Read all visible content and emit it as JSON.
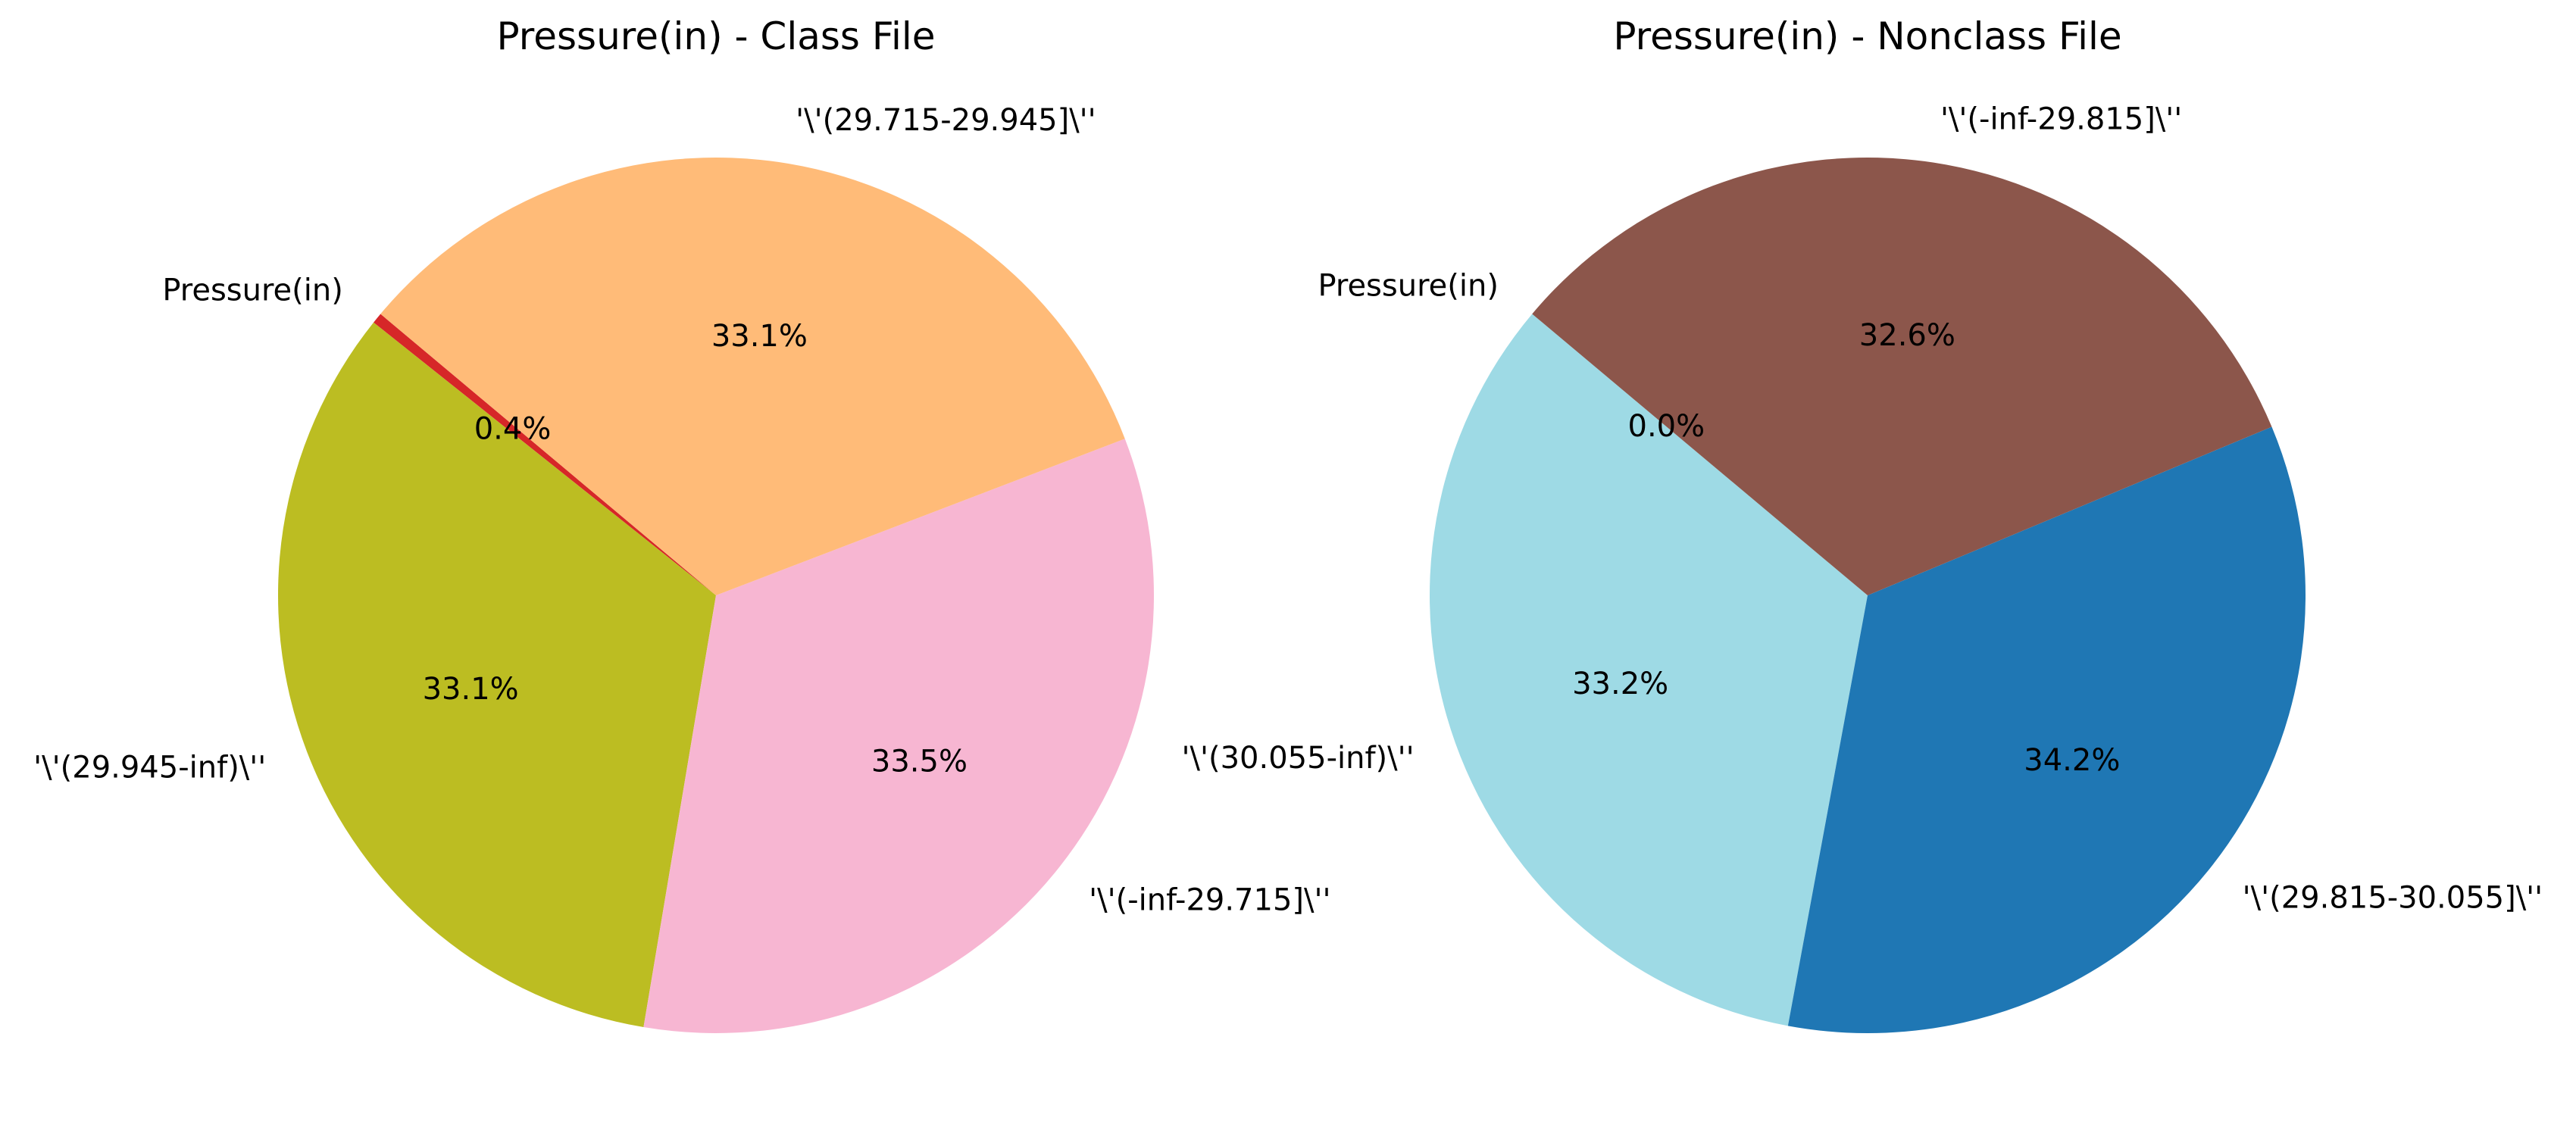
{
  "chart_data": [
    {
      "type": "pie",
      "title": "Pressure(in) - Class File",
      "start_angle_deg": 140,
      "direction": "counterclockwise",
      "slices": [
        {
          "label": "Pressure(in)",
          "value": 0.4,
          "pct_label": "0.4%",
          "color": "#d62728"
        },
        {
          "label": "'\\'(29.945-inf)\\''",
          "value": 33.1,
          "pct_label": "33.1%",
          "color": "#bcbd22"
        },
        {
          "label": "'\\'(-inf-29.715]\\''",
          "value": 33.5,
          "pct_label": "33.5%",
          "color": "#f7b6d2"
        },
        {
          "label": "'\\'(29.715-29.945]\\''",
          "value": 33.1,
          "pct_label": "33.1%",
          "color": "#ffbb78"
        }
      ]
    },
    {
      "type": "pie",
      "title": "Pressure(in) - Nonclass File",
      "start_angle_deg": 140,
      "direction": "counterclockwise",
      "slices": [
        {
          "label": "Pressure(in)",
          "value": 0.0,
          "pct_label": "0.0%",
          "color": "#17becf"
        },
        {
          "label": "'\\'(30.055-inf)\\''",
          "value": 33.2,
          "pct_label": "33.2%",
          "color": "#9edae5"
        },
        {
          "label": "'\\'(29.815-30.055]\\''",
          "value": 34.2,
          "pct_label": "34.2%",
          "color": "#1f77b4"
        },
        {
          "label": "'\\'(-inf-29.815]\\''",
          "value": 32.6,
          "pct_label": "32.6%",
          "color": "#8c564b"
        }
      ]
    }
  ]
}
